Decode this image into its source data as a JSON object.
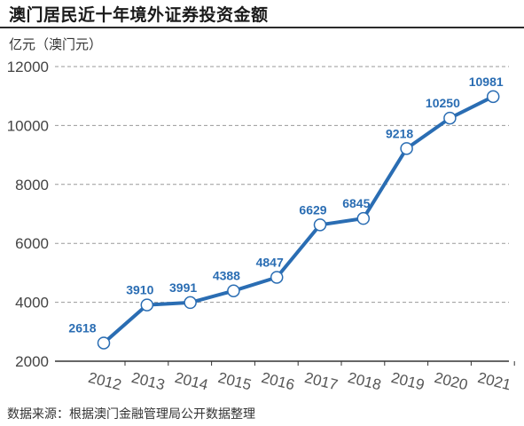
{
  "title": "澳门居民近十年境外证券投资金额",
  "unit_label": "亿元（澳门元）",
  "source": "数据来源：根据澳门金融管理局公开数据整理",
  "chart_data": {
    "type": "line",
    "title": "澳门居民近十年境外证券投资金额",
    "ylabel": "亿元（澳门元）",
    "xlabel": "",
    "categories": [
      "2012",
      "2013",
      "2014",
      "2015",
      "2016",
      "2017",
      "2018",
      "2019",
      "2020",
      "2021"
    ],
    "series": [
      {
        "values": [
          2618,
          3910,
          3991,
          4388,
          4847,
          6629,
          6845,
          9218,
          10250,
          10981
        ]
      }
    ],
    "ylim": [
      2000,
      12000
    ],
    "yticks": [
      2000,
      4000,
      6000,
      8000,
      10000,
      12000
    ],
    "grid": true,
    "colors": {
      "line": "#2a6db3",
      "label": "#2a6db3",
      "grid": "#9a9a9a",
      "axis": "#333333"
    }
  }
}
